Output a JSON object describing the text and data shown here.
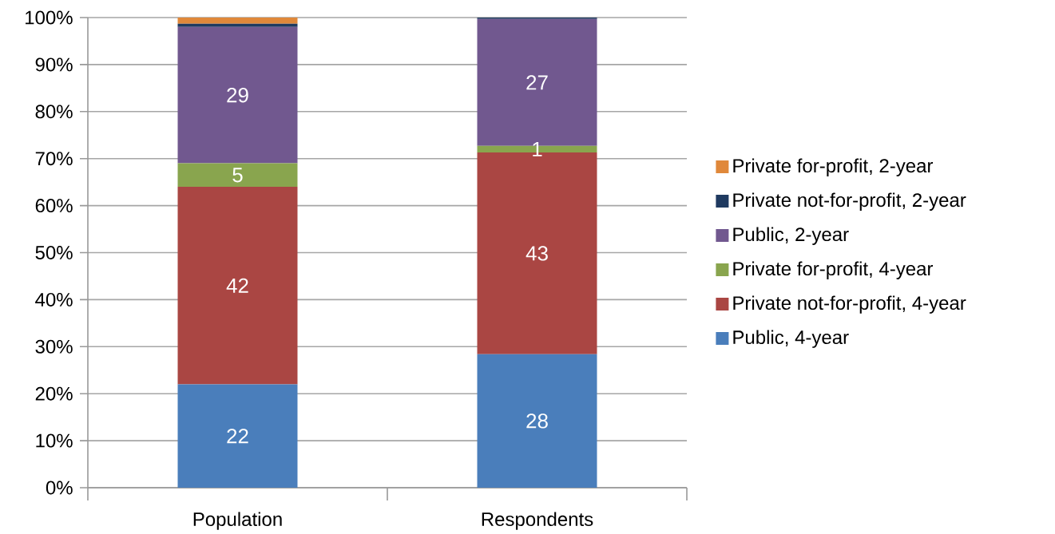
{
  "chart_data": {
    "type": "bar",
    "stacked": true,
    "categories": [
      "Population",
      "Respondents"
    ],
    "series": [
      {
        "name": "Public, 4-year",
        "color": "#4a7ebb",
        "values": [
          22,
          28.4
        ],
        "value_labels": [
          "22",
          "28"
        ]
      },
      {
        "name": "Private not-for-profit, 4-year",
        "color": "#aa4643",
        "values": [
          42,
          42.9
        ],
        "value_labels": [
          "42",
          "43"
        ]
      },
      {
        "name": "Private for-profit, 4-year",
        "color": "#89a54e",
        "values": [
          5,
          1.4
        ],
        "value_labels": [
          "5",
          "1"
        ]
      },
      {
        "name": "Public, 2-year",
        "color": "#71588f",
        "values": [
          29,
          27
        ],
        "value_labels": [
          "29",
          "27"
        ]
      },
      {
        "name": "Private not-for-profit, 2-year",
        "color": "#1f3a60",
        "values": [
          0.7,
          0.3
        ],
        "value_labels": [
          null,
          null
        ]
      },
      {
        "name": "Private for-profit, 2-year",
        "color": "#e0883a",
        "values": [
          1.3,
          0
        ],
        "value_labels": [
          null,
          null
        ]
      }
    ],
    "ylim": [
      0,
      100
    ],
    "yticks": [
      {
        "value": 0,
        "label": "0%"
      },
      {
        "value": 10,
        "label": "10%"
      },
      {
        "value": 20,
        "label": "20%"
      },
      {
        "value": 30,
        "label": "30%"
      },
      {
        "value": 40,
        "label": "40%"
      },
      {
        "value": 50,
        "label": "50%"
      },
      {
        "value": 60,
        "label": "60%"
      },
      {
        "value": 70,
        "label": "70%"
      },
      {
        "value": 80,
        "label": "80%"
      },
      {
        "value": 90,
        "label": "90%"
      },
      {
        "value": 100,
        "label": "100%"
      }
    ],
    "grid": "y",
    "legend": "right"
  }
}
